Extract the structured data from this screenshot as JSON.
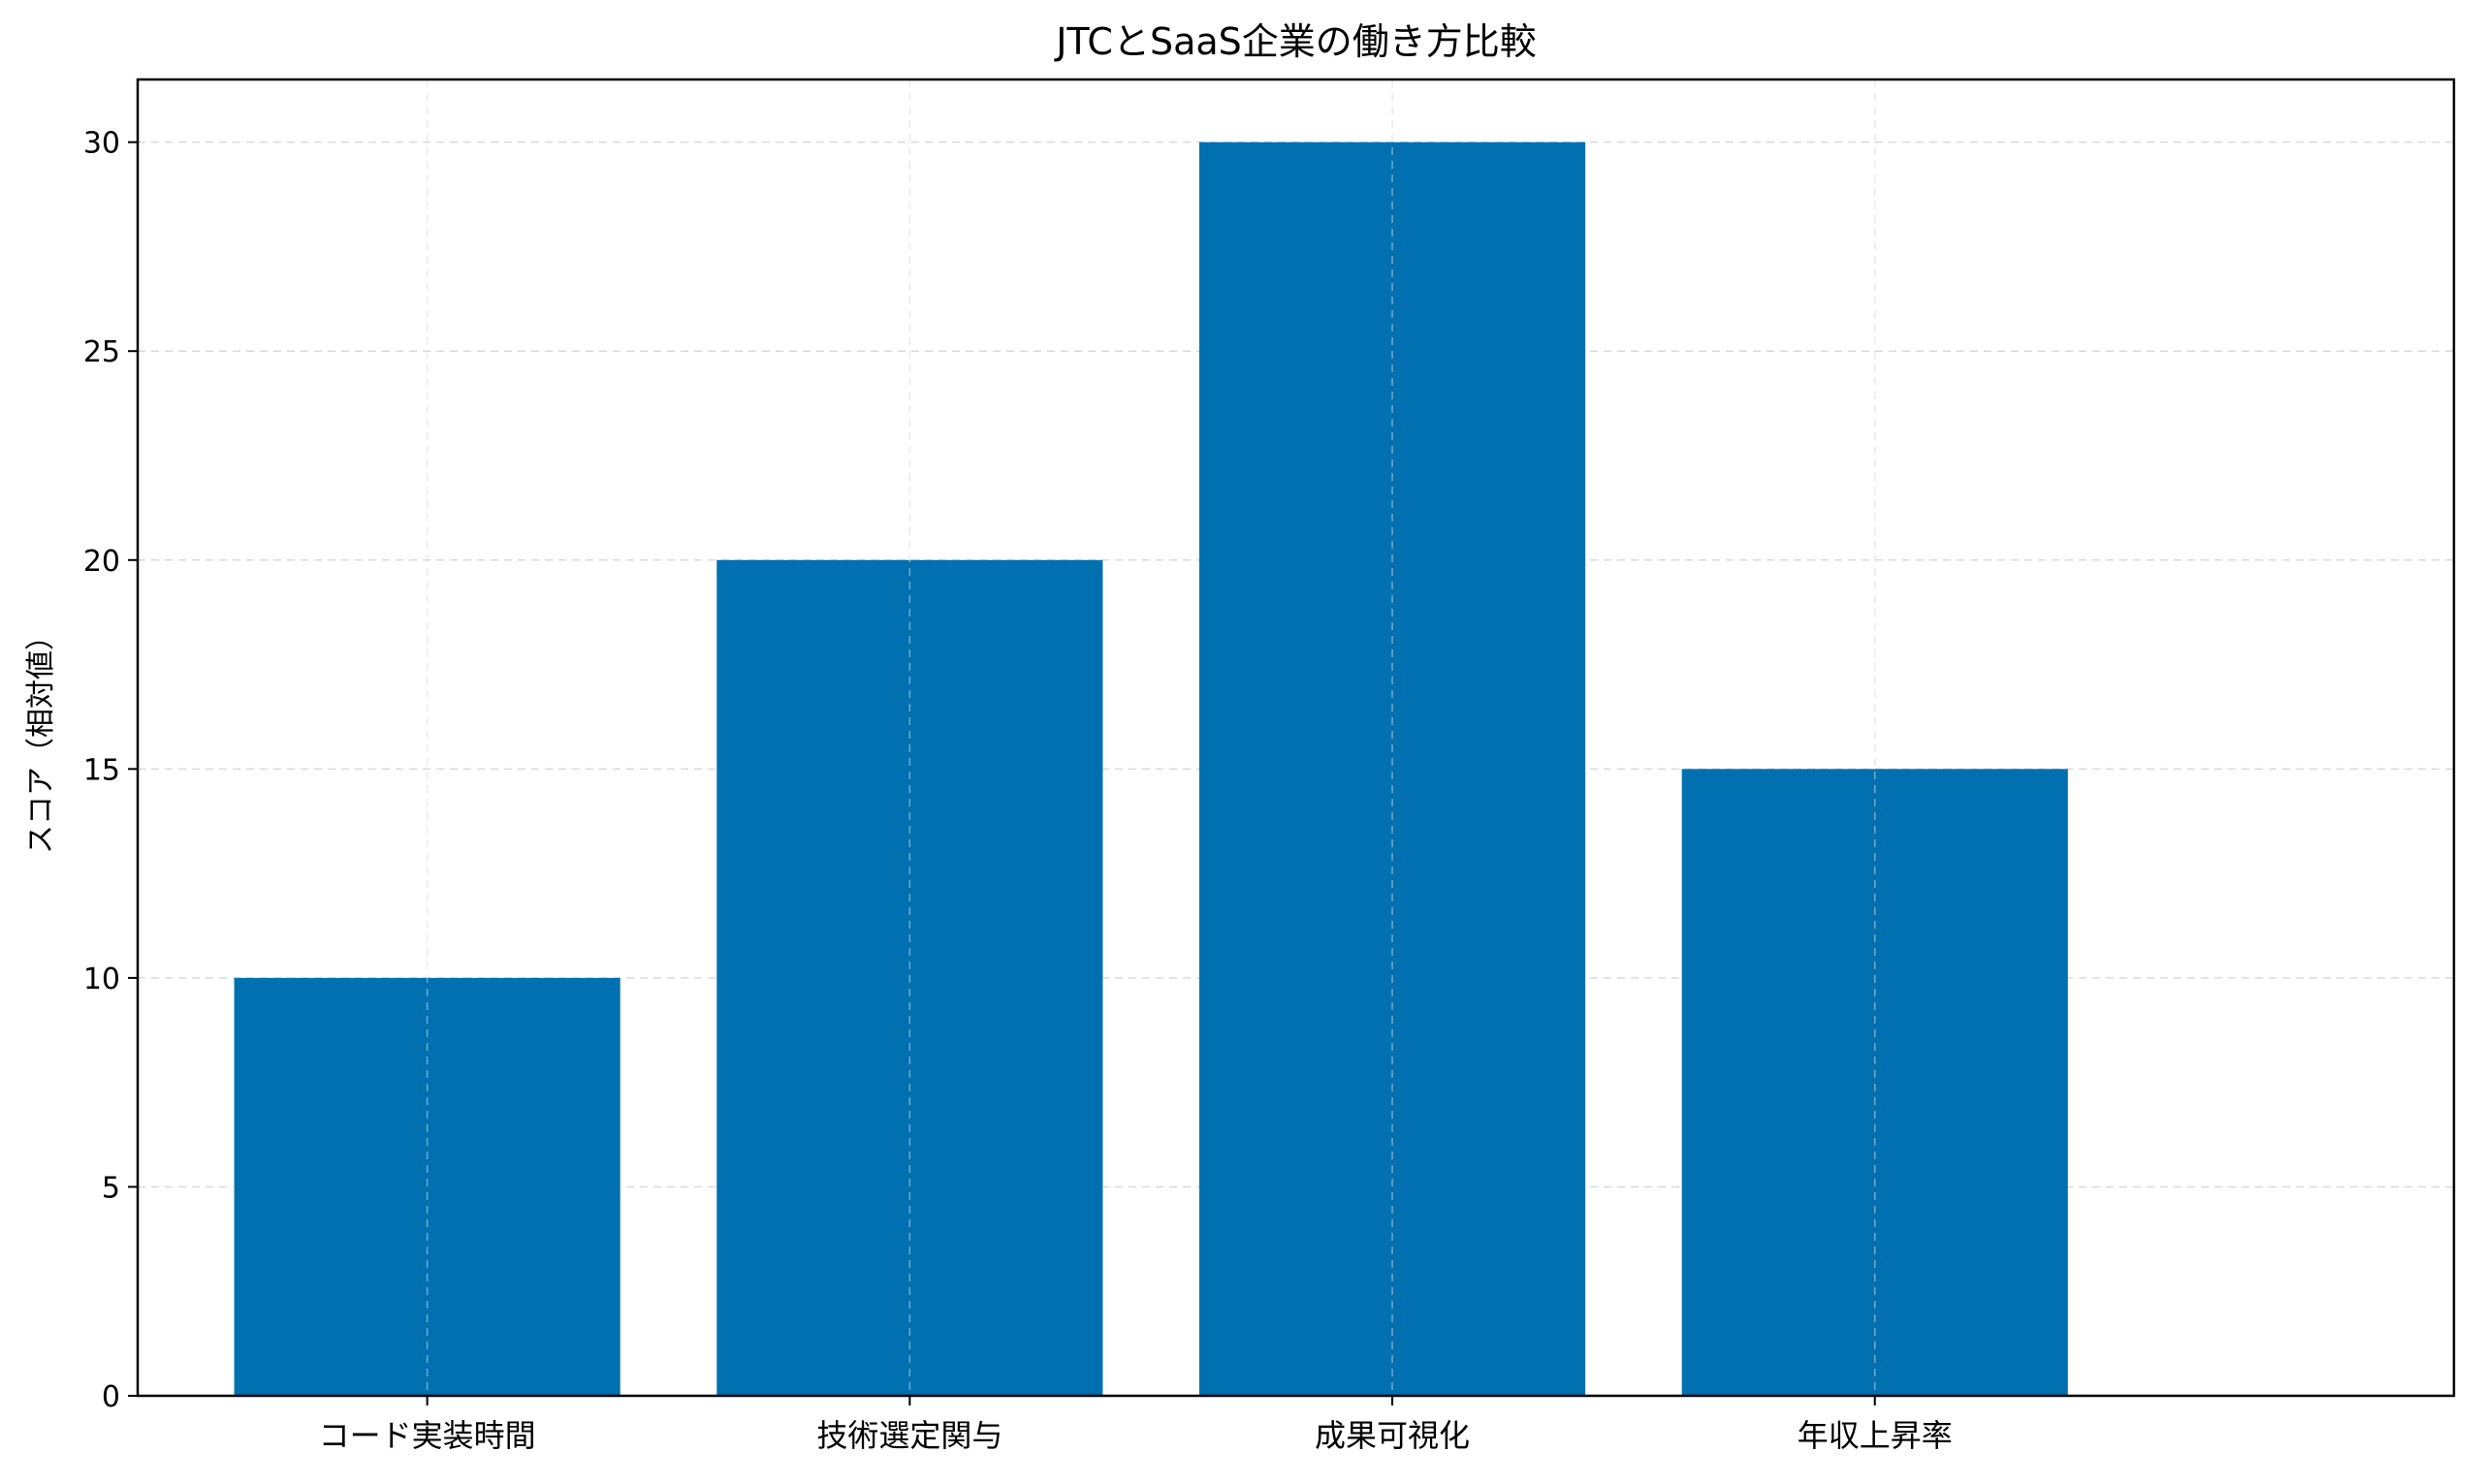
{
  "chart_data": {
    "type": "bar",
    "title": "JTCとSaaS企業の働き方比較",
    "xlabel": "",
    "ylabel": "スコア（相対値）",
    "categories": [
      "コード実装時間",
      "技術選定関与",
      "成果可視化",
      "年収上昇率"
    ],
    "values": [
      10,
      20,
      30,
      15
    ],
    "ylim": [
      0,
      31.5
    ],
    "yticks": [
      0,
      5,
      10,
      15,
      20,
      25,
      30
    ],
    "grid": true,
    "grid_style": "dashed",
    "bar_color": "#0070b0",
    "legend": null
  }
}
